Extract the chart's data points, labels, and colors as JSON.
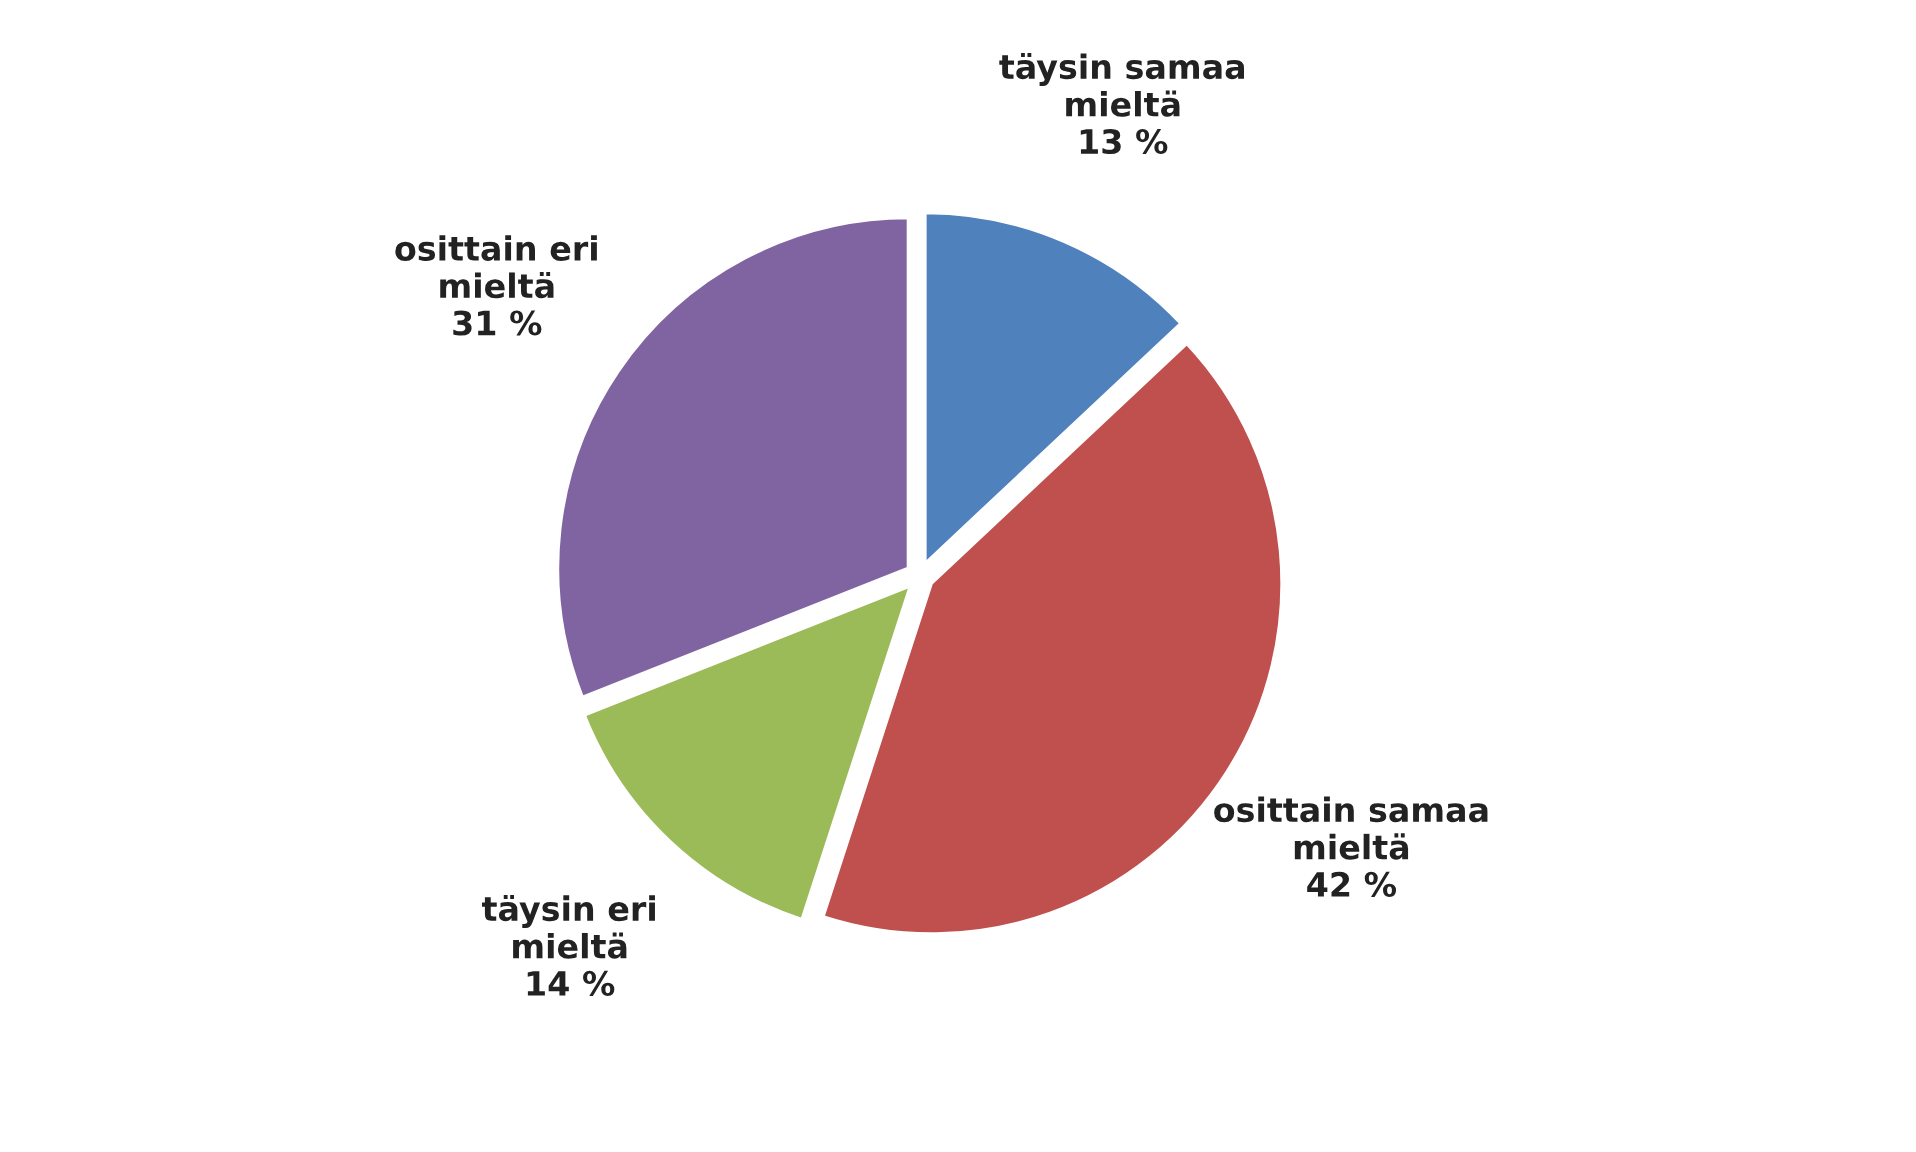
{
  "chart_data": {
    "type": "pie",
    "categories": [
      "täysin samaa\nmieltä",
      "osittain samaa\nmieltä",
      "täysin eri\nmieltä",
      "osittain eri\nmieltä"
    ],
    "values": [
      13,
      42,
      14,
      31
    ],
    "value_labels": [
      "13 %",
      "42 %",
      "14 %",
      "31 %"
    ],
    "colors": [
      "#4f81bd",
      "#c0504d",
      "#9bbb59",
      "#8064a2"
    ]
  }
}
